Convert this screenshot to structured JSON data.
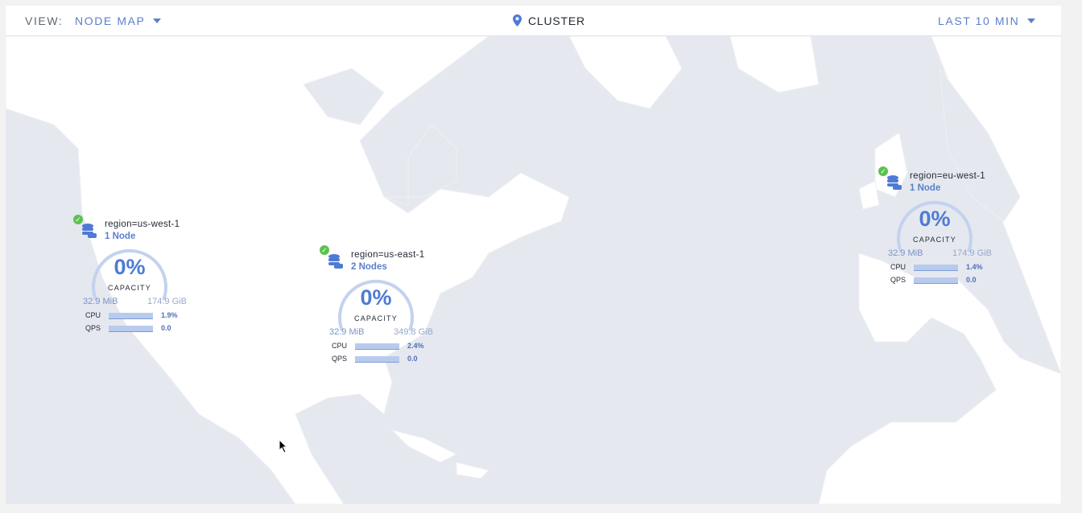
{
  "header": {
    "view_label": "VIEW:",
    "view_value": "NODE MAP",
    "cluster_label": "CLUSTER",
    "time_range": "LAST 10 MIN"
  },
  "colors": {
    "accent": "#5b7fcb",
    "land": "#ffffff",
    "water": "#e5e8ef",
    "healthy": "#5cc150"
  },
  "regions": [
    {
      "name": "region=us-west-1",
      "nodes": "1 Node",
      "capacity_pct": "0%",
      "capacity_label": "CAPACITY",
      "used": "32.9 MiB",
      "total": "174.9 GiB",
      "cpu_label": "CPU",
      "cpu": "1.9%",
      "qps_label": "QPS",
      "qps": "0.0",
      "status": "healthy"
    },
    {
      "name": "region=us-east-1",
      "nodes": "2 Nodes",
      "capacity_pct": "0%",
      "capacity_label": "CAPACITY",
      "used": "32.9 MiB",
      "total": "349.8 GiB",
      "cpu_label": "CPU",
      "cpu": "2.4%",
      "qps_label": "QPS",
      "qps": "0.0",
      "status": "healthy"
    },
    {
      "name": "region=eu-west-1",
      "nodes": "1 Node",
      "capacity_pct": "0%",
      "capacity_label": "CAPACITY",
      "used": "32.9 MiB",
      "total": "174.9 GiB",
      "cpu_label": "CPU",
      "cpu": "1.4%",
      "qps_label": "QPS",
      "qps": "0.0",
      "status": "healthy"
    }
  ]
}
